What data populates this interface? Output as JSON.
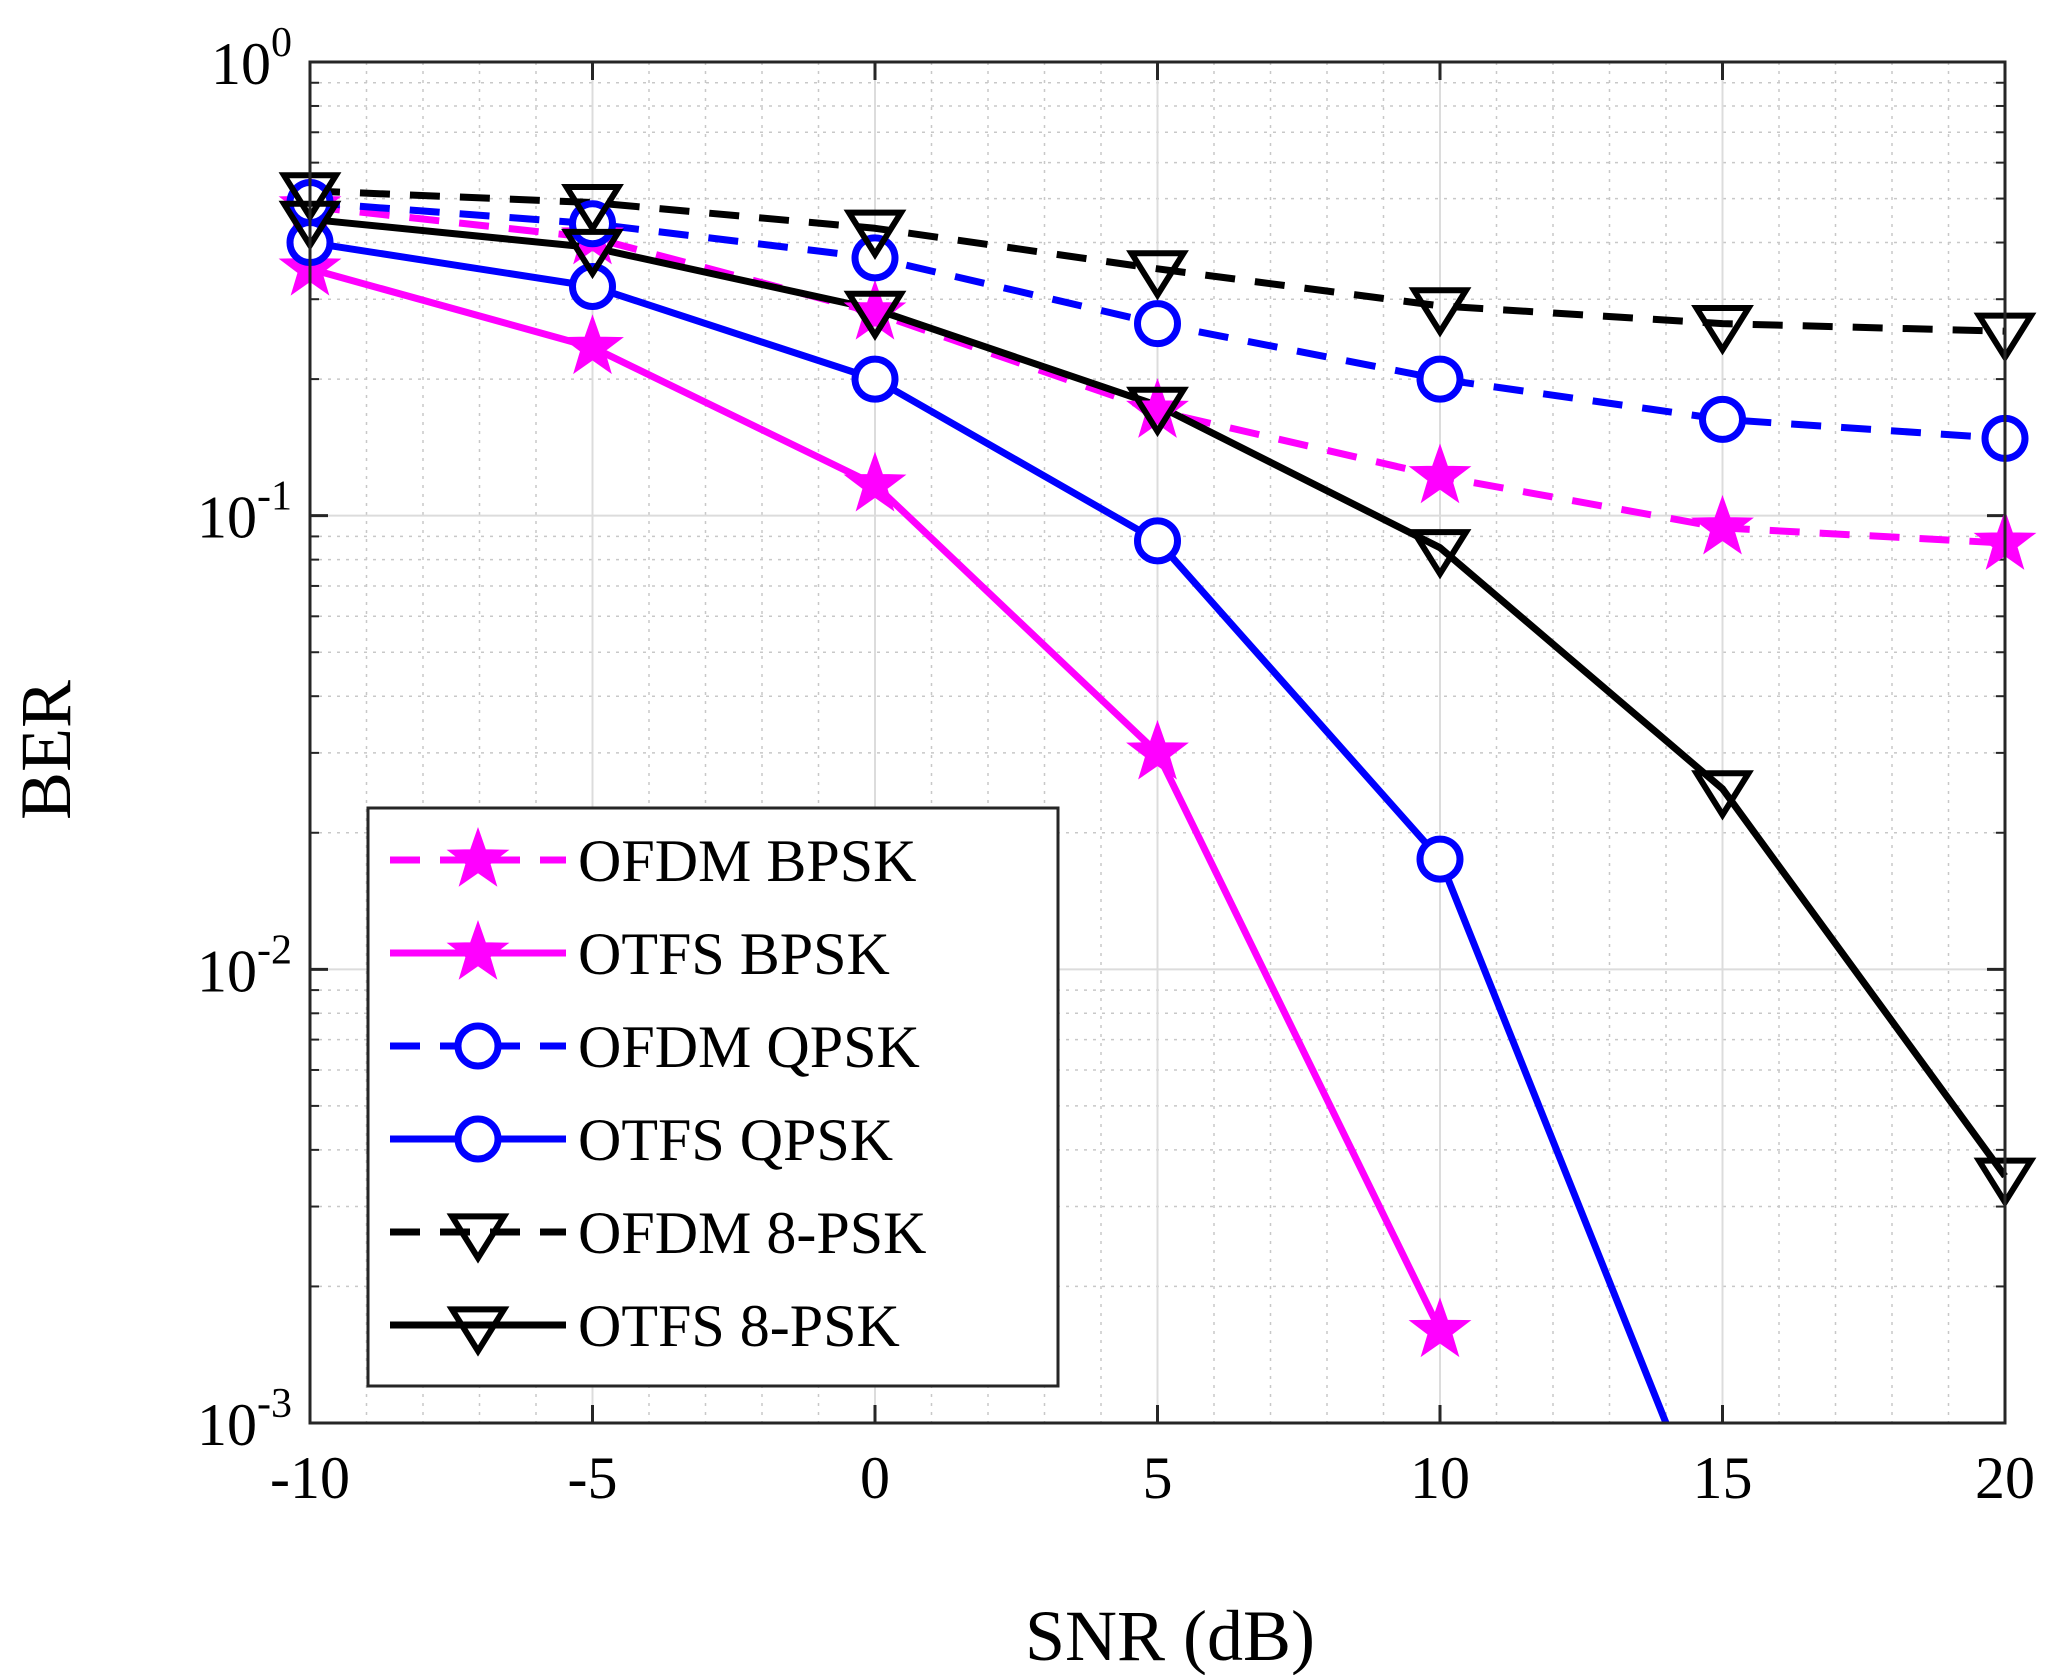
{
  "chart_data": {
    "type": "line",
    "title": "",
    "xlabel": "SNR (dB)",
    "ylabel": "BER",
    "yscale": "log",
    "xlim": [
      -10,
      20
    ],
    "ylim": [
      0.001,
      1
    ],
    "grid": true,
    "legend_position": "bottom-left",
    "x_ticks": [
      -10,
      -5,
      0,
      5,
      10,
      15,
      20
    ],
    "x_tick_labels": [
      "-10",
      "-5",
      "0",
      "5",
      "10",
      "15",
      "20"
    ],
    "y_ticks": [
      {
        "value": 1,
        "base": "10",
        "exp": "0"
      },
      {
        "value": 0.1,
        "base": "10",
        "exp": "-1"
      },
      {
        "value": 0.01,
        "base": "10",
        "exp": "-2"
      },
      {
        "value": 0.001,
        "base": "10",
        "exp": "-3"
      }
    ],
    "x": [
      -10,
      -5,
      0,
      5,
      10,
      15,
      20
    ],
    "series": [
      {
        "name": "OFDM BPSK",
        "color": "#ff00ff",
        "style": "dashed",
        "marker": "star",
        "values": [
          0.48,
          0.41,
          0.28,
          0.17,
          0.122,
          0.094,
          0.087
        ]
      },
      {
        "name": "OTFS BPSK",
        "color": "#ff00ff",
        "style": "solid",
        "marker": "star",
        "values": [
          0.35,
          0.235,
          0.117,
          0.03,
          0.0016,
          null,
          null
        ]
      },
      {
        "name": "OFDM QPSK",
        "color": "#0000ff",
        "style": "dashed",
        "marker": "circle",
        "values": [
          0.49,
          0.44,
          0.37,
          0.265,
          0.2,
          0.163,
          0.148
        ]
      },
      {
        "name": "OTFS QPSK",
        "color": "#0000ff",
        "style": "solid",
        "marker": "circle",
        "values": [
          0.4,
          0.32,
          0.2,
          0.088,
          0.0175,
          null,
          null
        ]
      },
      {
        "name": "OFDM 8-PSK",
        "color": "#000000",
        "style": "dashed",
        "marker": "triangle-down",
        "values": [
          0.52,
          0.49,
          0.43,
          0.35,
          0.29,
          0.265,
          0.255
        ]
      },
      {
        "name": "OTFS 8-PSK",
        "color": "#000000",
        "style": "solid",
        "marker": "triangle-down",
        "values": [
          0.45,
          0.39,
          0.285,
          0.175,
          0.085,
          0.025,
          0.0035
        ]
      }
    ],
    "extensions": [
      {
        "series": "OTFS QPSK",
        "x": [
          10,
          14
        ],
        "values": [
          0.0175,
          0.001
        ]
      }
    ]
  }
}
